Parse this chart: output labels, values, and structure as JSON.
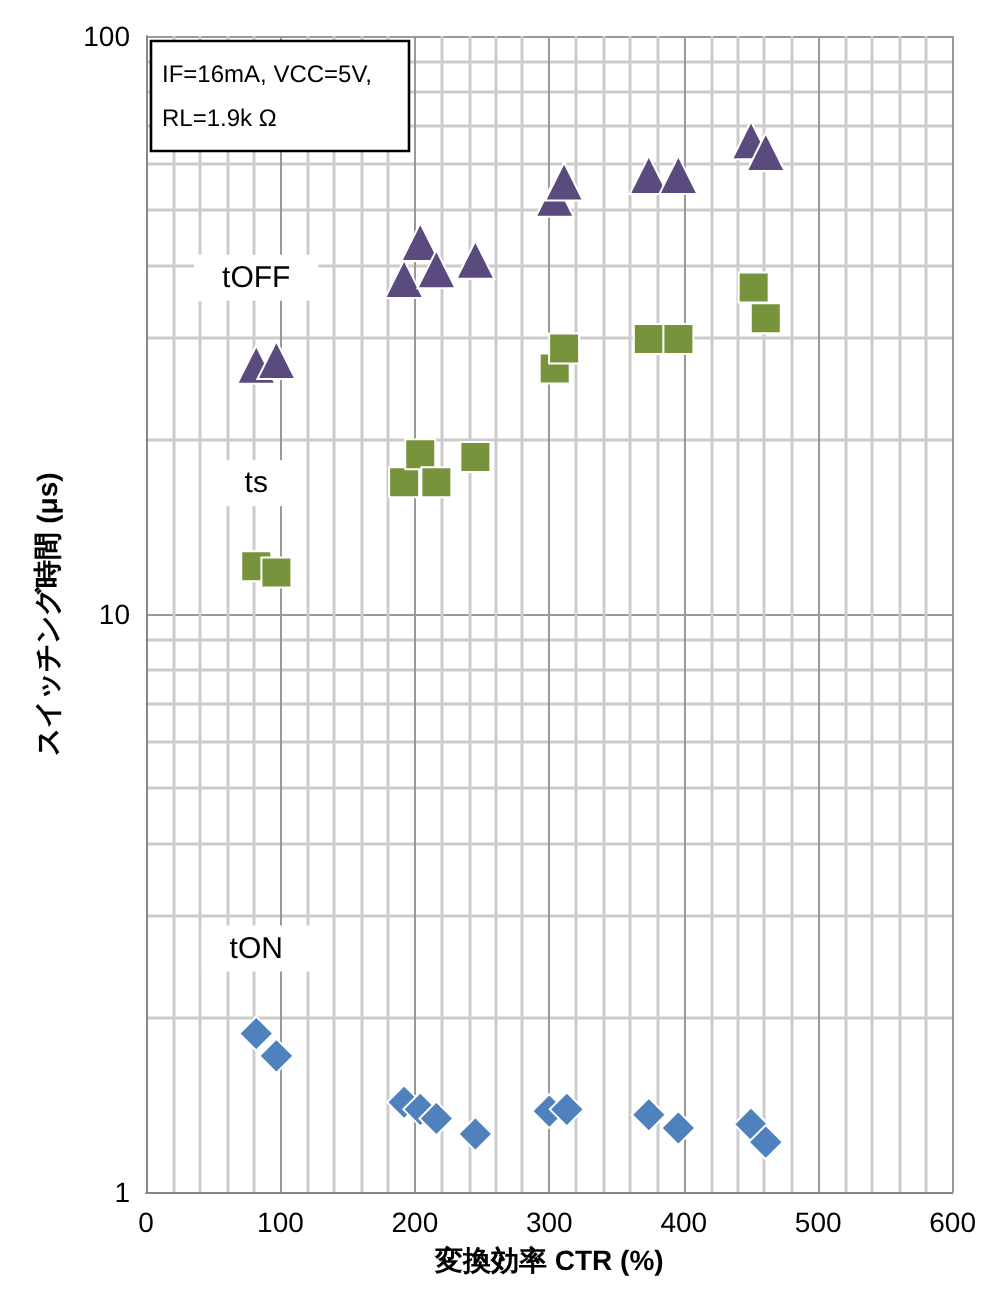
{
  "chart_data": {
    "type": "scatter",
    "xlabel": "変換効率 CTR (%)",
    "ylabel": "スイッチング時間 (μs)",
    "xlim": [
      0,
      600
    ],
    "xticks": [
      0,
      100,
      200,
      300,
      400,
      500,
      600
    ],
    "ylim": [
      1,
      100
    ],
    "yticks": [
      1,
      10,
      100
    ],
    "log": true,
    "grid": true,
    "legend": false,
    "annotations": [
      "IF=16mA, VCC=5V, RL=1.9k Ω"
    ],
    "series": [
      {
        "name": "tOFF",
        "color": "#5b4a7e",
        "marker": "triangle",
        "x": [
          82,
          97,
          192,
          204,
          216,
          245,
          304,
          311,
          374,
          396,
          450,
          461
        ],
        "values": [
          27,
          27.5,
          38,
          44,
          39.5,
          41,
          52.5,
          56,
          57.5,
          57.5,
          66,
          63
        ]
      },
      {
        "name": "ts",
        "color": "#77933c",
        "marker": "square",
        "x": [
          82,
          97,
          192,
          204,
          216,
          245,
          304,
          311,
          374,
          396,
          452,
          461
        ],
        "values": [
          12.1,
          11.8,
          16.9,
          18.9,
          16.9,
          18.7,
          26.6,
          28.8,
          29.9,
          29.9,
          36.7,
          32.5
        ]
      },
      {
        "name": "tON",
        "color": "#4f81bd",
        "marker": "diamond",
        "x": [
          82,
          97,
          192,
          204,
          216,
          245,
          300,
          313,
          374,
          396,
          450,
          461
        ],
        "values": [
          1.88,
          1.72,
          1.43,
          1.39,
          1.34,
          1.26,
          1.38,
          1.39,
          1.36,
          1.29,
          1.31,
          1.22
        ]
      }
    ]
  }
}
